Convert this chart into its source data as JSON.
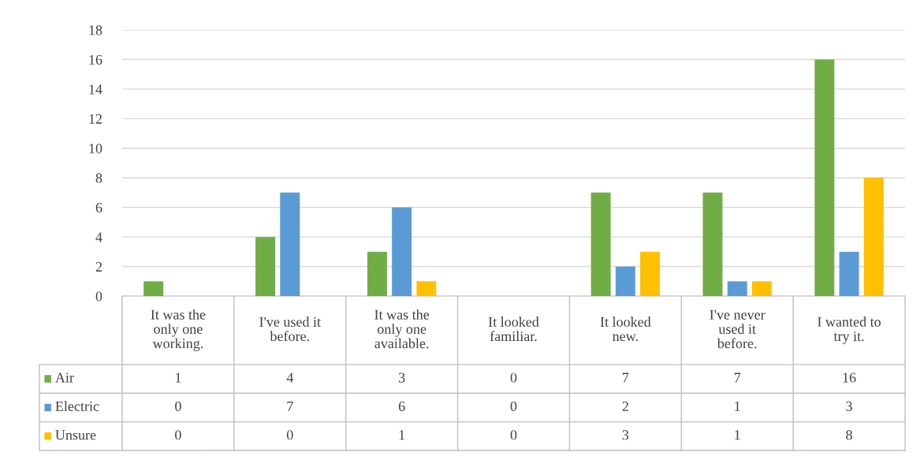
{
  "chart_data": {
    "type": "bar",
    "categories": [
      "It was the\nonly one\nworking.",
      "I've used it\nbefore.",
      "It was the\nonly one\navailable.",
      "It looked\nfamiliar.",
      "It looked\nnew.",
      "I've never\nused it\nbefore.",
      "I wanted to\ntry it."
    ],
    "series": [
      {
        "name": "Air",
        "color": "#70ad47",
        "values": [
          1,
          4,
          3,
          0,
          7,
          7,
          16
        ]
      },
      {
        "name": "Electric",
        "color": "#5b9bd5",
        "values": [
          0,
          7,
          6,
          0,
          2,
          1,
          3
        ]
      },
      {
        "name": "Unsure",
        "color": "#ffc000",
        "values": [
          0,
          0,
          1,
          0,
          3,
          1,
          8
        ]
      }
    ],
    "ylim": [
      0,
      18
    ],
    "yticks": [
      0,
      2,
      4,
      6,
      8,
      10,
      12,
      14,
      16,
      18
    ],
    "grid": "y",
    "legend": "bottom",
    "data_labels": true
  }
}
